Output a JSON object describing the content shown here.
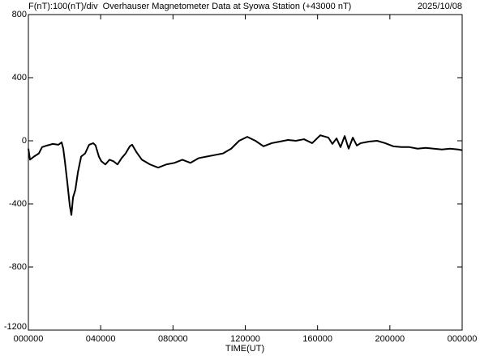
{
  "chart_data": {
    "type": "line",
    "title": "F(nT):100(nT)/div  Overhauser Magnetometer Data at Syowa Station (+43000 nT)",
    "date": "2025/10/08",
    "x_label": "TIME(UT)",
    "xlim": [
      0,
      24
    ],
    "xticks": [
      {
        "value": 0,
        "label": "000000"
      },
      {
        "value": 4,
        "label": "040000"
      },
      {
        "value": 8,
        "label": "080000"
      },
      {
        "value": 12,
        "label": "120000"
      },
      {
        "value": 16,
        "label": "160000"
      },
      {
        "value": 20,
        "label": "200000"
      },
      {
        "value": 24,
        "label": "000000"
      }
    ],
    "ylim": [
      -1200,
      800
    ],
    "yticks": [
      -1200,
      -800,
      -400,
      0,
      400,
      800
    ],
    "color": "#000000",
    "x": [
      0,
      0.09,
      0.31,
      0.58,
      0.76,
      1.03,
      1.35,
      1.66,
      1.84,
      1.93,
      2.02,
      2.15,
      2.29,
      2.38,
      2.47,
      2.6,
      2.74,
      2.92,
      3.14,
      3.36,
      3.59,
      3.72,
      3.9,
      4.04,
      4.26,
      4.49,
      4.71,
      4.93,
      5.16,
      5.38,
      5.61,
      5.74,
      5.97,
      6.28,
      6.73,
      7.18,
      7.63,
      8.08,
      8.52,
      8.97,
      9.42,
      9.87,
      10.32,
      10.77,
      11.22,
      11.66,
      12.11,
      12.56,
      13.01,
      13.46,
      13.91,
      14.36,
      14.8,
      15.25,
      15.7,
      16.15,
      16.6,
      16.82,
      17.05,
      17.27,
      17.5,
      17.72,
      17.95,
      18.17,
      18.39,
      18.84,
      19.29,
      19.74,
      20.19,
      20.64,
      21.08,
      21.53,
      21.98,
      22.43,
      22.88,
      23.33,
      23.78,
      24
    ],
    "values": [
      -50,
      -120,
      -100,
      -80,
      -40,
      -30,
      -20,
      -25,
      -10,
      -50,
      -130,
      -260,
      -410,
      -470,
      -360,
      -310,
      -200,
      -100,
      -80,
      -25,
      -15,
      -30,
      -100,
      -130,
      -150,
      -120,
      -130,
      -150,
      -110,
      -80,
      -35,
      -25,
      -70,
      -120,
      -150,
      -170,
      -150,
      -140,
      -120,
      -140,
      -110,
      -100,
      -90,
      -80,
      -50,
      0,
      25,
      0,
      -35,
      -15,
      -5,
      5,
      0,
      10,
      -15,
      35,
      20,
      -20,
      15,
      -40,
      30,
      -50,
      20,
      -30,
      -15,
      -5,
      0,
      -15,
      -35,
      -40,
      -40,
      -50,
      -45,
      -50,
      -55,
      -50,
      -55,
      -60
    ]
  }
}
